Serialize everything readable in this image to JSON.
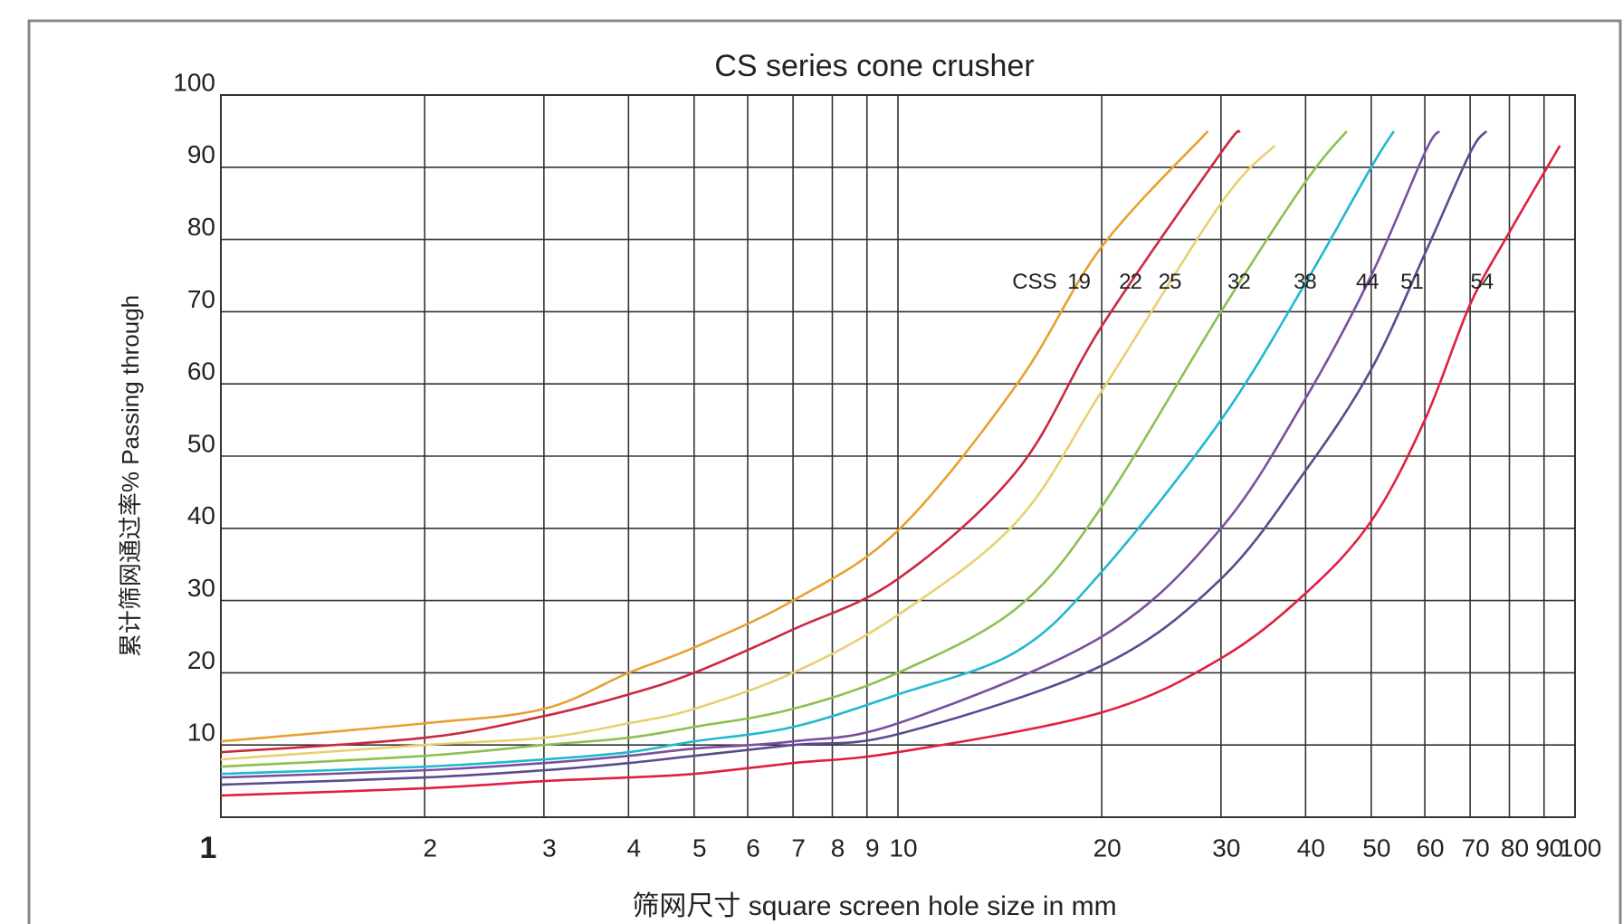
{
  "chart_data": {
    "type": "line",
    "title": "CS series cone crusher",
    "x_label": "筛网尺寸 square screen hole size in mm",
    "y_label": "累计筛网通过率%  Passing through",
    "annotation": "CSS",
    "x_scale": "log",
    "xlim": [
      1,
      100
    ],
    "xticks": [
      1,
      2,
      3,
      4,
      5,
      6,
      7,
      8,
      9,
      10,
      20,
      30,
      40,
      50,
      60,
      70,
      80,
      90,
      100
    ],
    "ylim": [
      0,
      100
    ],
    "yticks": [
      10,
      20,
      30,
      40,
      50,
      60,
      70,
      80,
      90,
      100
    ],
    "grid": true,
    "series": [
      {
        "name": "19",
        "color": "#e8a030",
        "x": [
          1,
          2,
          3,
          4,
          5,
          7,
          10,
          15,
          20,
          28.7
        ],
        "values": [
          10.5,
          13,
          15,
          20,
          23.5,
          30,
          39.7,
          60,
          79,
          95
        ]
      },
      {
        "name": "22",
        "color": "#cc2840",
        "x": [
          1,
          2,
          3,
          4,
          5,
          7,
          10,
          15,
          20,
          30,
          32
        ],
        "values": [
          9,
          11,
          14,
          17,
          20,
          26,
          33,
          48,
          68,
          92,
          95
        ]
      },
      {
        "name": "25",
        "color": "#e8d070",
        "x": [
          1,
          2,
          3,
          4,
          5,
          7,
          10,
          15,
          20,
          30,
          36
        ],
        "values": [
          8,
          10,
          11,
          13,
          15,
          20,
          28,
          41,
          59,
          85,
          93
        ]
      },
      {
        "name": "32",
        "color": "#8cc050",
        "x": [
          1,
          2,
          3,
          4,
          5,
          7,
          10,
          15,
          20,
          30,
          40,
          46
        ],
        "values": [
          7,
          8.5,
          10,
          11,
          12.5,
          15,
          20,
          29,
          43,
          70,
          88,
          95
        ]
      },
      {
        "name": "38",
        "color": "#20b8d0",
        "x": [
          1,
          2,
          3,
          4,
          5,
          7,
          10,
          15,
          20,
          30,
          40,
          50,
          54
        ],
        "values": [
          6,
          7,
          8,
          9,
          10.5,
          12.5,
          17,
          23,
          34,
          55,
          74,
          90,
          95
        ]
      },
      {
        "name": "44",
        "color": "#7a4fa0",
        "x": [
          1,
          2,
          3,
          4,
          5,
          7,
          10,
          20,
          30,
          40,
          50,
          60,
          63
        ],
        "values": [
          5.5,
          6.5,
          7.5,
          8.5,
          9.5,
          10.5,
          13,
          25,
          40,
          58,
          75,
          92,
          95
        ]
      },
      {
        "name": "51",
        "color": "#5a4a90",
        "x": [
          1,
          2,
          3,
          4,
          5,
          7,
          10,
          20,
          30,
          40,
          50,
          60,
          70,
          74
        ],
        "values": [
          4.5,
          5.5,
          6.5,
          7.5,
          8.5,
          10,
          11.5,
          21,
          33,
          48,
          62,
          78,
          92,
          95
        ]
      },
      {
        "name": "54",
        "color": "#e02040",
        "x": [
          1,
          2,
          3,
          4,
          5,
          7,
          10,
          20,
          30,
          40,
          50,
          60,
          70,
          80,
          95
        ],
        "values": [
          3,
          4,
          5,
          5.5,
          6,
          7.5,
          9,
          14.5,
          22,
          31,
          41,
          55,
          71,
          81,
          93
        ]
      }
    ]
  }
}
